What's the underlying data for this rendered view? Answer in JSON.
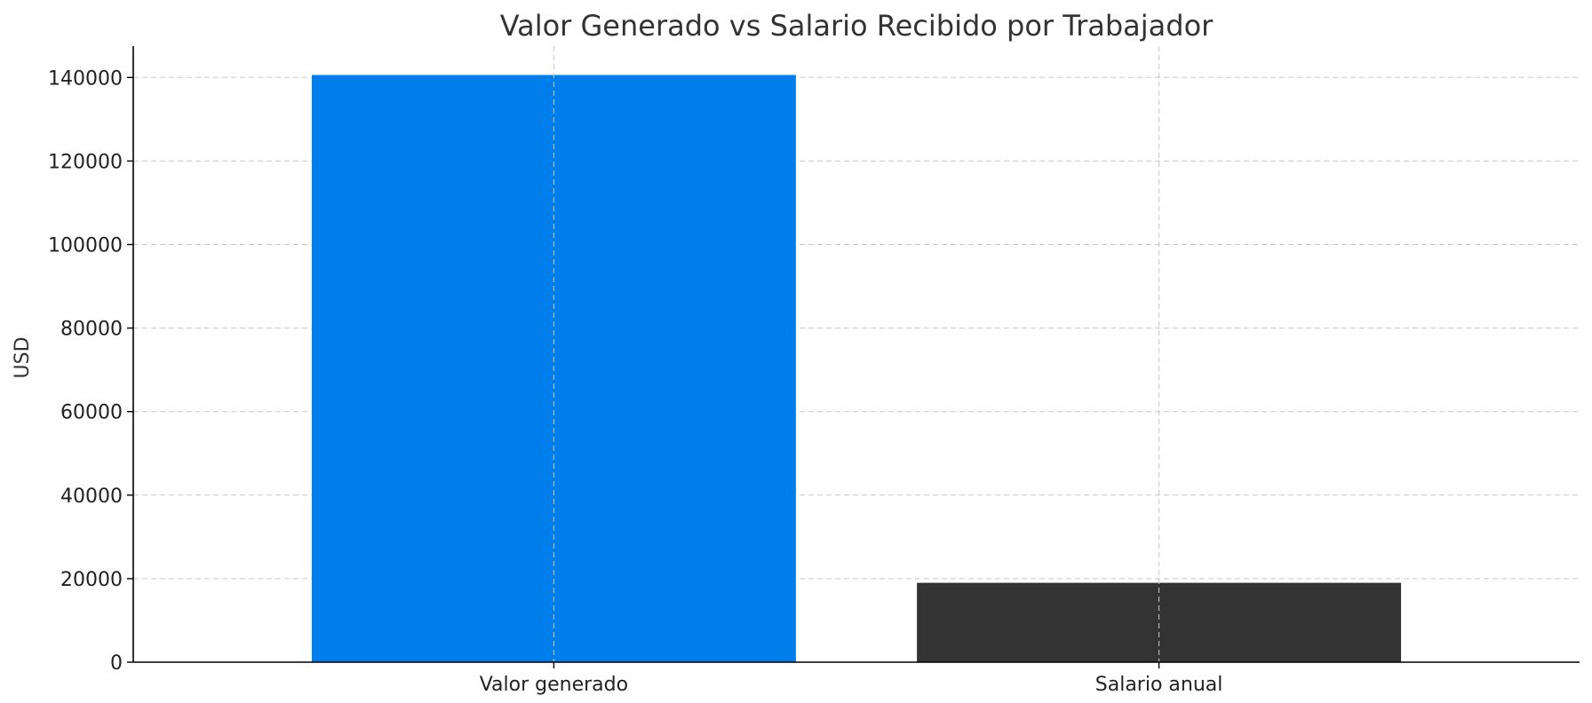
{
  "chart_data": {
    "type": "bar",
    "title": "Valor Generado vs Salario Recibido por Trabajador",
    "xlabel": "",
    "ylabel": "USD",
    "categories": [
      "Valor generado",
      "Salario anual"
    ],
    "values": [
      140600,
      19000
    ],
    "colors": [
      "#007fec",
      "#333333"
    ],
    "ylim": [
      0,
      147500
    ],
    "yticks": [
      0,
      20000,
      40000,
      60000,
      80000,
      100000,
      120000,
      140000
    ],
    "grid": true
  }
}
